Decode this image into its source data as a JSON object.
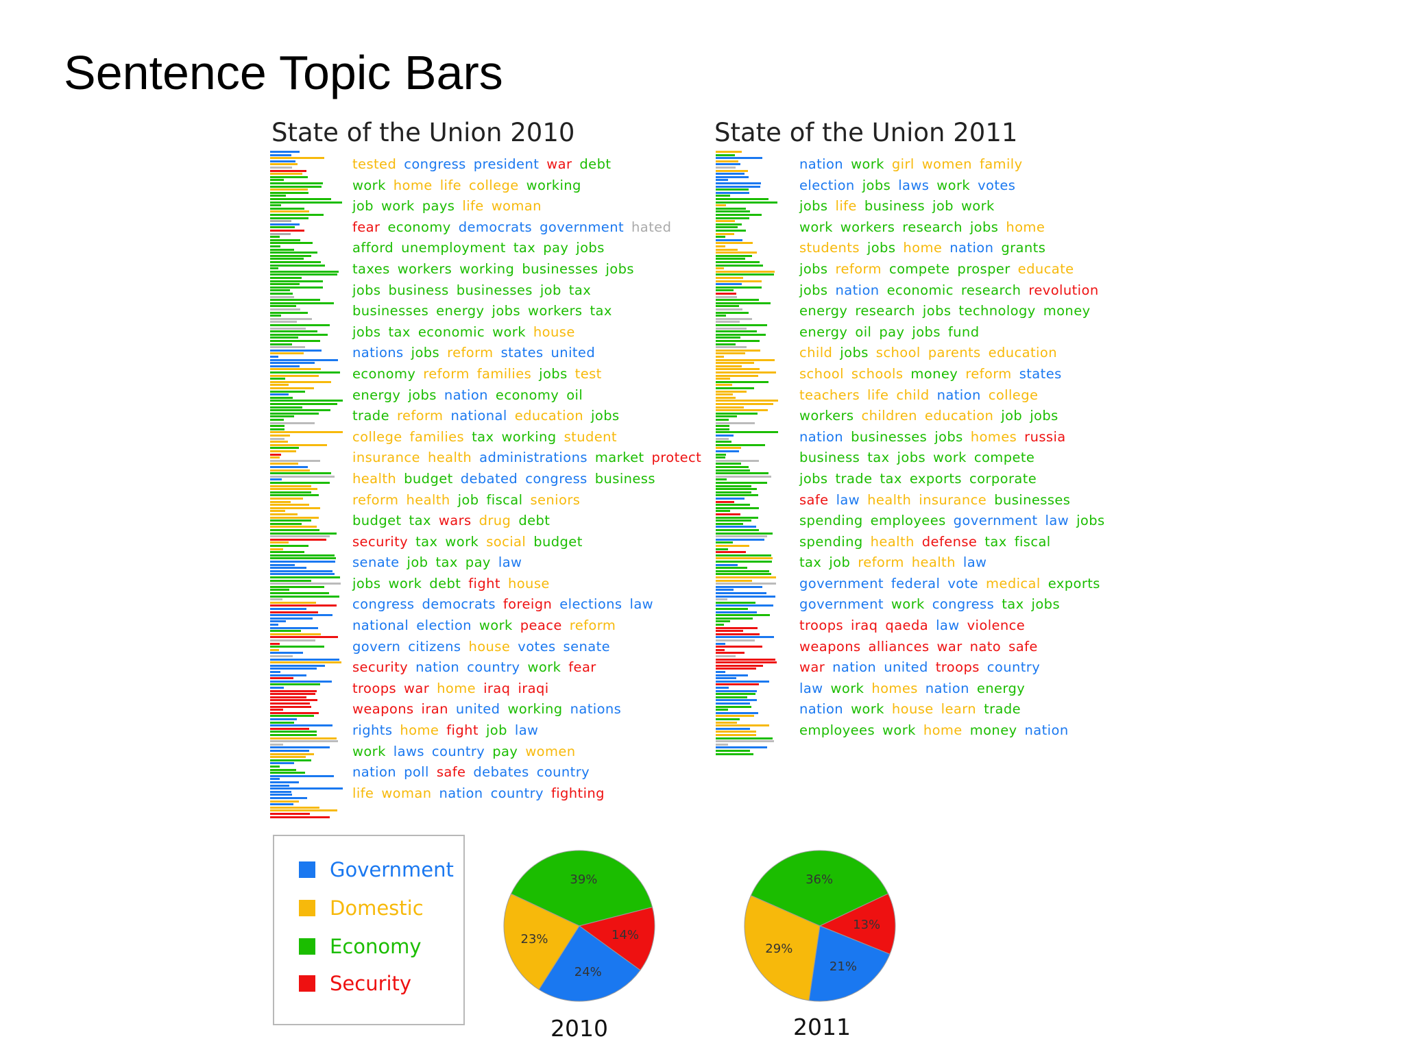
{
  "title": "Sentence Topic Bars",
  "colors": {
    "Government": "#1a78f0",
    "Domestic": "#f7b90b",
    "Economy": "#1bbd00",
    "Security": "#ee1111"
  },
  "legend": [
    {
      "key": "Government",
      "label": "Government"
    },
    {
      "key": "Domestic",
      "label": "Domestic"
    },
    {
      "key": "Economy",
      "label": "Economy"
    },
    {
      "key": "Security",
      "label": "Security"
    }
  ],
  "panels": [
    {
      "title": "State of the Union 2010"
    },
    {
      "title": "State of the Union 2011"
    }
  ],
  "sentences_2010": [
    [
      [
        "tested",
        "Domestic"
      ],
      [
        "congress",
        "Government"
      ],
      [
        "president",
        "Government"
      ],
      [
        "war",
        "Security"
      ],
      [
        "debt",
        "Economy"
      ]
    ],
    [
      [
        "work",
        "Economy"
      ],
      [
        "home",
        "Domestic"
      ],
      [
        "life",
        "Domestic"
      ],
      [
        "college",
        "Domestic"
      ],
      [
        "working",
        "Economy"
      ]
    ],
    [
      [
        "job",
        "Economy"
      ],
      [
        "work",
        "Economy"
      ],
      [
        "pays",
        "Economy"
      ],
      [
        "life",
        "Domestic"
      ],
      [
        "woman",
        "Domestic"
      ]
    ],
    [
      [
        "fear",
        "Security"
      ],
      [
        "economy",
        "Economy"
      ],
      [
        "democrats",
        "Government"
      ],
      [
        "government",
        "Government"
      ],
      [
        "hated",
        "Other"
      ]
    ],
    [
      [
        "afford",
        "Economy"
      ],
      [
        "unemployment",
        "Economy"
      ],
      [
        "tax",
        "Economy"
      ],
      [
        "pay",
        "Economy"
      ],
      [
        "jobs",
        "Economy"
      ]
    ],
    [
      [
        "taxes",
        "Economy"
      ],
      [
        "workers",
        "Economy"
      ],
      [
        "working",
        "Economy"
      ],
      [
        "businesses",
        "Economy"
      ],
      [
        "jobs",
        "Economy"
      ]
    ],
    [
      [
        "jobs",
        "Economy"
      ],
      [
        "business",
        "Economy"
      ],
      [
        "businesses",
        "Economy"
      ],
      [
        "job",
        "Economy"
      ],
      [
        "tax",
        "Economy"
      ]
    ],
    [
      [
        "businesses",
        "Economy"
      ],
      [
        "energy",
        "Economy"
      ],
      [
        "jobs",
        "Economy"
      ],
      [
        "workers",
        "Economy"
      ],
      [
        "tax",
        "Economy"
      ]
    ],
    [
      [
        "jobs",
        "Economy"
      ],
      [
        "tax",
        "Economy"
      ],
      [
        "economic",
        "Economy"
      ],
      [
        "work",
        "Economy"
      ],
      [
        "house",
        "Domestic"
      ]
    ],
    [
      [
        "nations",
        "Government"
      ],
      [
        "jobs",
        "Economy"
      ],
      [
        "reform",
        "Domestic"
      ],
      [
        "states",
        "Government"
      ],
      [
        "united",
        "Government"
      ]
    ],
    [
      [
        "economy",
        "Economy"
      ],
      [
        "reform",
        "Domestic"
      ],
      [
        "families",
        "Domestic"
      ],
      [
        "jobs",
        "Economy"
      ],
      [
        "test",
        "Domestic"
      ]
    ],
    [
      [
        "energy",
        "Economy"
      ],
      [
        "jobs",
        "Economy"
      ],
      [
        "nation",
        "Government"
      ],
      [
        "economy",
        "Economy"
      ],
      [
        "oil",
        "Economy"
      ]
    ],
    [
      [
        "trade",
        "Economy"
      ],
      [
        "reform",
        "Domestic"
      ],
      [
        "national",
        "Government"
      ],
      [
        "education",
        "Domestic"
      ],
      [
        "jobs",
        "Economy"
      ]
    ],
    [
      [
        "college",
        "Domestic"
      ],
      [
        "families",
        "Domestic"
      ],
      [
        "tax",
        "Economy"
      ],
      [
        "working",
        "Economy"
      ],
      [
        "student",
        "Domestic"
      ]
    ],
    [
      [
        "insurance",
        "Domestic"
      ],
      [
        "health",
        "Domestic"
      ],
      [
        "administrations",
        "Government"
      ],
      [
        "market",
        "Economy"
      ],
      [
        "protect",
        "Security"
      ]
    ],
    [
      [
        "health",
        "Domestic"
      ],
      [
        "budget",
        "Economy"
      ],
      [
        "debated",
        "Government"
      ],
      [
        "congress",
        "Government"
      ],
      [
        "business",
        "Economy"
      ]
    ],
    [
      [
        "reform",
        "Domestic"
      ],
      [
        "health",
        "Domestic"
      ],
      [
        "job",
        "Economy"
      ],
      [
        "fiscal",
        "Economy"
      ],
      [
        "seniors",
        "Domestic"
      ]
    ],
    [
      [
        "budget",
        "Economy"
      ],
      [
        "tax",
        "Economy"
      ],
      [
        "wars",
        "Security"
      ],
      [
        "drug",
        "Domestic"
      ],
      [
        "debt",
        "Economy"
      ]
    ],
    [
      [
        "security",
        "Security"
      ],
      [
        "tax",
        "Economy"
      ],
      [
        "work",
        "Economy"
      ],
      [
        "social",
        "Domestic"
      ],
      [
        "budget",
        "Economy"
      ]
    ],
    [
      [
        "senate",
        "Government"
      ],
      [
        "job",
        "Economy"
      ],
      [
        "tax",
        "Economy"
      ],
      [
        "pay",
        "Economy"
      ],
      [
        "law",
        "Government"
      ]
    ],
    [
      [
        "jobs",
        "Economy"
      ],
      [
        "work",
        "Economy"
      ],
      [
        "debt",
        "Economy"
      ],
      [
        "fight",
        "Security"
      ],
      [
        "house",
        "Domestic"
      ]
    ],
    [
      [
        "congress",
        "Government"
      ],
      [
        "democrats",
        "Government"
      ],
      [
        "foreign",
        "Security"
      ],
      [
        "elections",
        "Government"
      ],
      [
        "law",
        "Government"
      ]
    ],
    [
      [
        "national",
        "Government"
      ],
      [
        "election",
        "Government"
      ],
      [
        "work",
        "Economy"
      ],
      [
        "peace",
        "Security"
      ],
      [
        "reform",
        "Domestic"
      ]
    ],
    [
      [
        "govern",
        "Government"
      ],
      [
        "citizens",
        "Government"
      ],
      [
        "house",
        "Domestic"
      ],
      [
        "votes",
        "Government"
      ],
      [
        "senate",
        "Government"
      ]
    ],
    [
      [
        "security",
        "Security"
      ],
      [
        "nation",
        "Government"
      ],
      [
        "country",
        "Government"
      ],
      [
        "work",
        "Economy"
      ],
      [
        "fear",
        "Security"
      ]
    ],
    [
      [
        "troops",
        "Security"
      ],
      [
        "war",
        "Security"
      ],
      [
        "home",
        "Domestic"
      ],
      [
        "iraq",
        "Security"
      ],
      [
        "iraqi",
        "Security"
      ]
    ],
    [
      [
        "weapons",
        "Security"
      ],
      [
        "iran",
        "Security"
      ],
      [
        "united",
        "Government"
      ],
      [
        "working",
        "Economy"
      ],
      [
        "nations",
        "Government"
      ]
    ],
    [
      [
        "rights",
        "Government"
      ],
      [
        "home",
        "Domestic"
      ],
      [
        "fight",
        "Security"
      ],
      [
        "job",
        "Economy"
      ],
      [
        "law",
        "Government"
      ]
    ],
    [
      [
        "work",
        "Economy"
      ],
      [
        "laws",
        "Government"
      ],
      [
        "country",
        "Government"
      ],
      [
        "pay",
        "Economy"
      ],
      [
        "women",
        "Domestic"
      ]
    ],
    [
      [
        "nation",
        "Government"
      ],
      [
        "poll",
        "Government"
      ],
      [
        "safe",
        "Security"
      ],
      [
        "debates",
        "Government"
      ],
      [
        "country",
        "Government"
      ]
    ],
    [
      [
        "life",
        "Domestic"
      ],
      [
        "woman",
        "Domestic"
      ],
      [
        "nation",
        "Government"
      ],
      [
        "country",
        "Government"
      ],
      [
        "fighting",
        "Security"
      ]
    ]
  ],
  "sentences_2011": [
    [
      [
        "nation",
        "Government"
      ],
      [
        "work",
        "Economy"
      ],
      [
        "girl",
        "Domestic"
      ],
      [
        "women",
        "Domestic"
      ],
      [
        "family",
        "Domestic"
      ]
    ],
    [
      [
        "election",
        "Government"
      ],
      [
        "jobs",
        "Economy"
      ],
      [
        "laws",
        "Government"
      ],
      [
        "work",
        "Economy"
      ],
      [
        "votes",
        "Government"
      ]
    ],
    [
      [
        "jobs",
        "Economy"
      ],
      [
        "life",
        "Domestic"
      ],
      [
        "business",
        "Economy"
      ],
      [
        "job",
        "Economy"
      ],
      [
        "work",
        "Economy"
      ]
    ],
    [
      [
        "work",
        "Economy"
      ],
      [
        "workers",
        "Economy"
      ],
      [
        "research",
        "Economy"
      ],
      [
        "jobs",
        "Economy"
      ],
      [
        "home",
        "Domestic"
      ]
    ],
    [
      [
        "students",
        "Domestic"
      ],
      [
        "jobs",
        "Economy"
      ],
      [
        "home",
        "Domestic"
      ],
      [
        "nation",
        "Government"
      ],
      [
        "grants",
        "Economy"
      ]
    ],
    [
      [
        "jobs",
        "Economy"
      ],
      [
        "reform",
        "Domestic"
      ],
      [
        "compete",
        "Economy"
      ],
      [
        "prosper",
        "Economy"
      ],
      [
        "educate",
        "Domestic"
      ]
    ],
    [
      [
        "jobs",
        "Economy"
      ],
      [
        "nation",
        "Government"
      ],
      [
        "economic",
        "Economy"
      ],
      [
        "research",
        "Economy"
      ],
      [
        "revolution",
        "Security"
      ]
    ],
    [
      [
        "energy",
        "Economy"
      ],
      [
        "research",
        "Economy"
      ],
      [
        "jobs",
        "Economy"
      ],
      [
        "technology",
        "Economy"
      ],
      [
        "money",
        "Economy"
      ]
    ],
    [
      [
        "energy",
        "Economy"
      ],
      [
        "oil",
        "Economy"
      ],
      [
        "pay",
        "Economy"
      ],
      [
        "jobs",
        "Economy"
      ],
      [
        "fund",
        "Economy"
      ]
    ],
    [
      [
        "child",
        "Domestic"
      ],
      [
        "jobs",
        "Economy"
      ],
      [
        "school",
        "Domestic"
      ],
      [
        "parents",
        "Domestic"
      ],
      [
        "education",
        "Domestic"
      ]
    ],
    [
      [
        "school",
        "Domestic"
      ],
      [
        "schools",
        "Domestic"
      ],
      [
        "money",
        "Economy"
      ],
      [
        "reform",
        "Domestic"
      ],
      [
        "states",
        "Government"
      ]
    ],
    [
      [
        "teachers",
        "Domestic"
      ],
      [
        "life",
        "Domestic"
      ],
      [
        "child",
        "Domestic"
      ],
      [
        "nation",
        "Government"
      ],
      [
        "college",
        "Domestic"
      ]
    ],
    [
      [
        "workers",
        "Economy"
      ],
      [
        "children",
        "Domestic"
      ],
      [
        "education",
        "Domestic"
      ],
      [
        "job",
        "Economy"
      ],
      [
        "jobs",
        "Economy"
      ]
    ],
    [
      [
        "nation",
        "Government"
      ],
      [
        "businesses",
        "Economy"
      ],
      [
        "jobs",
        "Economy"
      ],
      [
        "homes",
        "Domestic"
      ],
      [
        "russia",
        "Security"
      ]
    ],
    [
      [
        "business",
        "Economy"
      ],
      [
        "tax",
        "Economy"
      ],
      [
        "jobs",
        "Economy"
      ],
      [
        "work",
        "Economy"
      ],
      [
        "compete",
        "Economy"
      ]
    ],
    [
      [
        "jobs",
        "Economy"
      ],
      [
        "trade",
        "Economy"
      ],
      [
        "tax",
        "Economy"
      ],
      [
        "exports",
        "Economy"
      ],
      [
        "corporate",
        "Economy"
      ]
    ],
    [
      [
        "safe",
        "Security"
      ],
      [
        "law",
        "Government"
      ],
      [
        "health",
        "Domestic"
      ],
      [
        "insurance",
        "Domestic"
      ],
      [
        "businesses",
        "Economy"
      ]
    ],
    [
      [
        "spending",
        "Economy"
      ],
      [
        "employees",
        "Economy"
      ],
      [
        "government",
        "Government"
      ],
      [
        "law",
        "Government"
      ],
      [
        "jobs",
        "Economy"
      ]
    ],
    [
      [
        "spending",
        "Economy"
      ],
      [
        "health",
        "Domestic"
      ],
      [
        "defense",
        "Security"
      ],
      [
        "tax",
        "Economy"
      ],
      [
        "fiscal",
        "Economy"
      ]
    ],
    [
      [
        "tax",
        "Economy"
      ],
      [
        "job",
        "Economy"
      ],
      [
        "reform",
        "Domestic"
      ],
      [
        "health",
        "Domestic"
      ],
      [
        "law",
        "Government"
      ]
    ],
    [
      [
        "government",
        "Government"
      ],
      [
        "federal",
        "Government"
      ],
      [
        "vote",
        "Government"
      ],
      [
        "medical",
        "Domestic"
      ],
      [
        "exports",
        "Economy"
      ]
    ],
    [
      [
        "government",
        "Government"
      ],
      [
        "work",
        "Economy"
      ],
      [
        "congress",
        "Government"
      ],
      [
        "tax",
        "Economy"
      ],
      [
        "jobs",
        "Economy"
      ]
    ],
    [
      [
        "troops",
        "Security"
      ],
      [
        "iraq",
        "Security"
      ],
      [
        "qaeda",
        "Security"
      ],
      [
        "law",
        "Government"
      ],
      [
        "violence",
        "Security"
      ]
    ],
    [
      [
        "weapons",
        "Security"
      ],
      [
        "alliances",
        "Security"
      ],
      [
        "war",
        "Security"
      ],
      [
        "nato",
        "Security"
      ],
      [
        "safe",
        "Security"
      ]
    ],
    [
      [
        "war",
        "Security"
      ],
      [
        "nation",
        "Government"
      ],
      [
        "united",
        "Government"
      ],
      [
        "troops",
        "Security"
      ],
      [
        "country",
        "Government"
      ]
    ],
    [
      [
        "law",
        "Government"
      ],
      [
        "work",
        "Economy"
      ],
      [
        "homes",
        "Domestic"
      ],
      [
        "nation",
        "Government"
      ],
      [
        "energy",
        "Economy"
      ]
    ],
    [
      [
        "nation",
        "Government"
      ],
      [
        "work",
        "Economy"
      ],
      [
        "house",
        "Domestic"
      ],
      [
        "learn",
        "Domestic"
      ],
      [
        "trade",
        "Economy"
      ]
    ],
    [
      [
        "employees",
        "Economy"
      ],
      [
        "work",
        "Economy"
      ],
      [
        "home",
        "Domestic"
      ],
      [
        "money",
        "Economy"
      ],
      [
        "nation",
        "Government"
      ]
    ]
  ],
  "chart_data": [
    {
      "type": "pie",
      "title": "2010",
      "categories": [
        "Economy",
        "Security",
        "Government",
        "Domestic"
      ],
      "values": [
        39,
        14,
        24,
        23
      ],
      "labels": [
        "39%",
        "14%",
        "24%",
        "23%"
      ]
    },
    {
      "type": "pie",
      "title": "2011",
      "categories": [
        "Economy",
        "Security",
        "Government",
        "Domestic"
      ],
      "values": [
        36,
        13,
        21,
        29
      ],
      "labels": [
        "36%",
        "13%",
        "21%",
        "29%"
      ]
    }
  ]
}
